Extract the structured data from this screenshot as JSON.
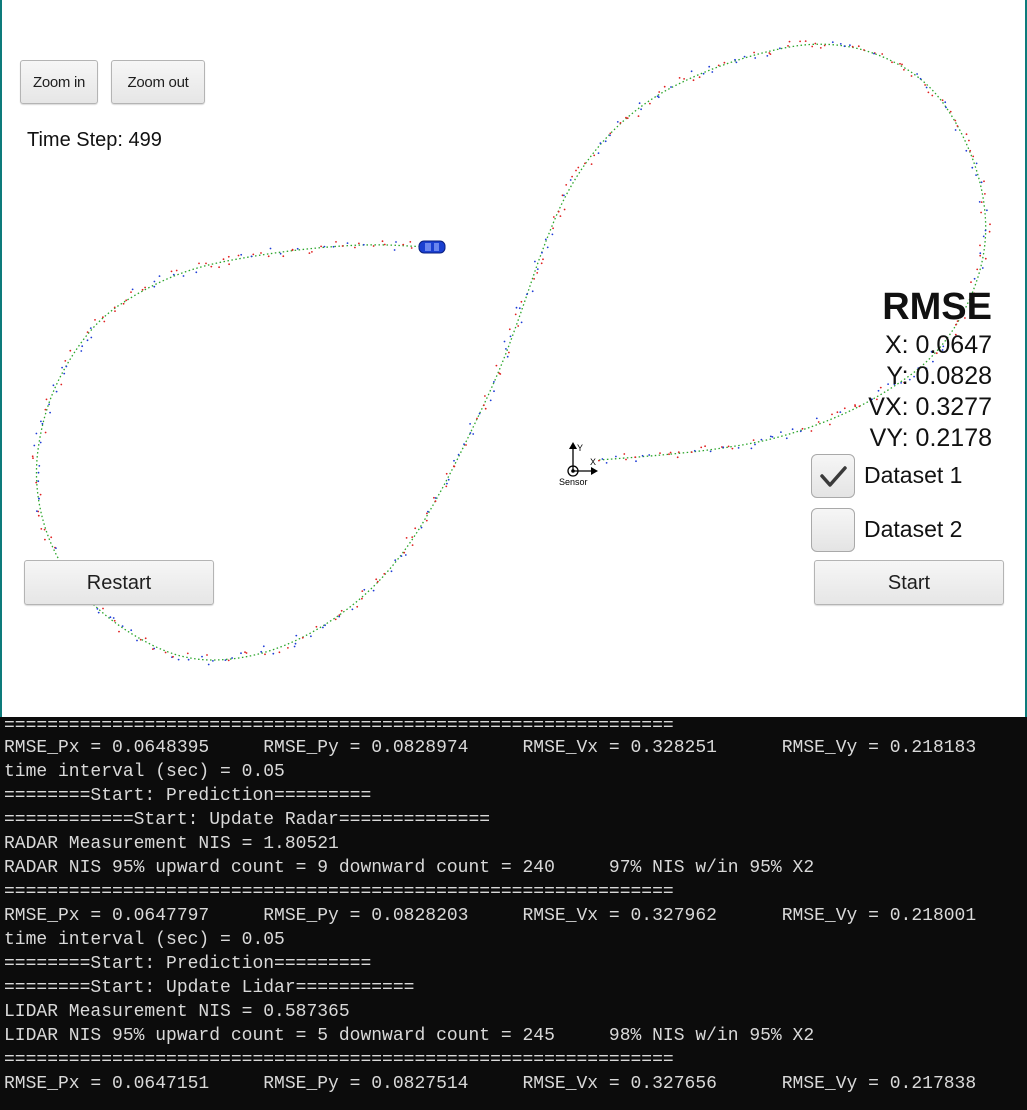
{
  "controls": {
    "zoom_in_label": "Zoom in",
    "zoom_out_label": "Zoom out",
    "restart_label": "Restart",
    "start_label": "Start"
  },
  "time_step": "Time Step: 499",
  "rmse": {
    "title": "RMSE",
    "x": "X: 0.0647",
    "y": "Y: 0.0828",
    "vx": "VX: 0.3277",
    "vy": "VY: 0.2178"
  },
  "datasets": [
    {
      "label": "Dataset 1",
      "checked": true
    },
    {
      "label": "Dataset 2",
      "checked": false
    }
  ],
  "sensor": {
    "label": "Sensor",
    "x_axis": "X",
    "y_axis": "Y"
  },
  "colors": {
    "track_green": "#2aa52a",
    "lidar_red": "#e02020",
    "radar_blue": "#1e3cd6",
    "car_blue": "#1a3fd0",
    "console_bg": "#0c0c0c",
    "console_text": "#d9d9d9"
  },
  "console": {
    "lines": [
      "==============================================================",
      "RMSE_Px = 0.0648395     RMSE_Py = 0.0828974     RMSE_Vx = 0.328251      RMSE_Vy = 0.218183",
      "time interval (sec) = 0.05",
      "========Start: Prediction=========",
      "============Start: Update Radar==============",
      "RADAR Measurement NIS = 1.80521",
      "RADAR NIS 95% upward count = 9 downward count = 240     97% NIS w/in 95% X2",
      "==============================================================",
      "RMSE_Px = 0.0647797     RMSE_Py = 0.0828203     RMSE_Vx = 0.327962      RMSE_Vy = 0.218001",
      "time interval (sec) = 0.05",
      "========Start: Prediction=========",
      "========Start: Update Lidar===========",
      "LIDAR Measurement NIS = 0.587365",
      "LIDAR NIS 95% upward count = 5 downward count = 245     98% NIS w/in 95% X2",
      "==============================================================",
      "RMSE_Px = 0.0647151     RMSE_Py = 0.0827514     RMSE_Vx = 0.327656      RMSE_Vy = 0.217838"
    ]
  }
}
